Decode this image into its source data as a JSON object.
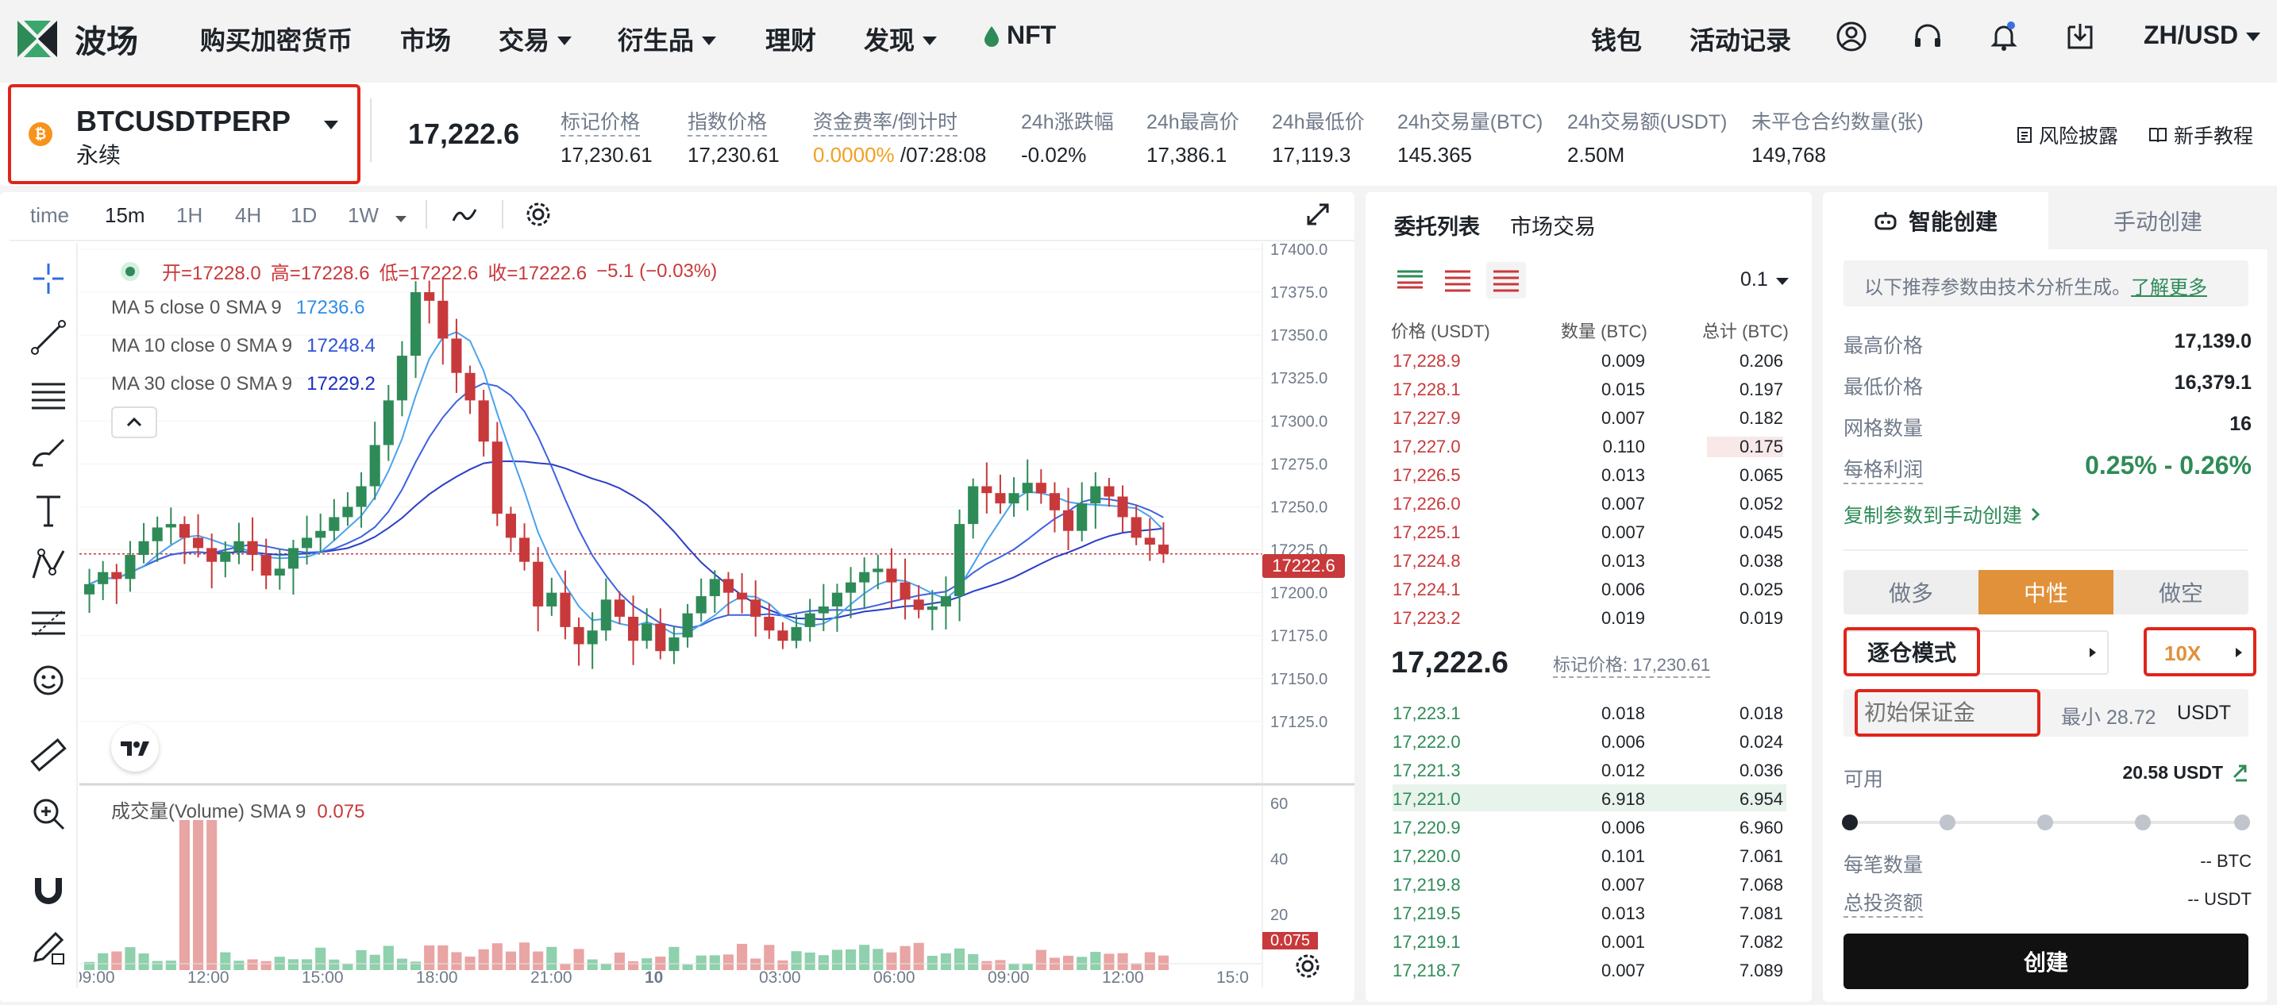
{
  "brand": {
    "name": "波场"
  },
  "nav": {
    "buy_crypto": "购买加密货币",
    "market": "市场",
    "trade": "交易",
    "derivatives": "衍生品",
    "finance": "理财",
    "discover": "发现",
    "nft": "NFT"
  },
  "nav_right": {
    "wallet": "钱包",
    "activity": "活动记录",
    "locale": "ZH/USD"
  },
  "ticker": {
    "symbol": "BTCUSDTPERP",
    "type": "永续",
    "price": "17,222.6",
    "stats": [
      {
        "label": "标记价格",
        "value": "17,230.61"
      },
      {
        "label": "指数价格",
        "value": "17,230.61"
      },
      {
        "label": "资金费率/倒计时",
        "value_highlight": "0.0000%",
        "value": " /07:28:08"
      },
      {
        "label": "24h涨跌幅",
        "value": "-0.02%"
      },
      {
        "label": "24h最高价",
        "value": "17,386.1"
      },
      {
        "label": "24h最低价",
        "value": "17,119.3"
      },
      {
        "label": "24h交易量(BTC)",
        "value": "145.365"
      },
      {
        "label": "24h交易额(USDT)",
        "value": "2.50M"
      },
      {
        "label": "未平仓合约数量(张)",
        "value": "149,768"
      }
    ],
    "risk": "风险披露",
    "tutorial": "新手教程"
  },
  "chart_toolbar": {
    "intervals": [
      "time",
      "15m",
      "1H",
      "4H",
      "1D",
      "1W"
    ],
    "active": "15m"
  },
  "chart_legend": {
    "ohlc_open": "开=17228.0",
    "ohlc_high": "高=17228.6",
    "ohlc_low": "低=17222.6",
    "ohlc_close": "收=17222.6",
    "ohlc_change": "−5.1 (−0.03%)",
    "ma5_label": "MA 5 close 0 SMA 9",
    "ma5_val": "17236.6",
    "ma10_label": "MA 10 close 0 SMA 9",
    "ma10_val": "17248.4",
    "ma30_label": "MA 30 close 0 SMA 9",
    "ma30_val": "17229.2",
    "volume_label": "成交量(Volume) SMA 9",
    "volume_val": "0.075",
    "last_price_tag": "17222.6",
    "volume_tag": "0.075"
  },
  "chart_data": {
    "type": "candlestick",
    "price_axis": {
      "min": 17100,
      "max": 17400,
      "ticks": [
        "17400.0",
        "17375.0",
        "17350.0",
        "17325.0",
        "17300.0",
        "17275.0",
        "17250.0",
        "17225.0",
        "17200.0",
        "17175.0",
        "17150.0",
        "17125.0"
      ]
    },
    "volume_axis": {
      "min": 0,
      "max": 60,
      "ticks": [
        "60",
        "40",
        "20"
      ]
    },
    "time_ticks": [
      "09:00",
      "12:00",
      "15:00",
      "18:00",
      "21:00",
      "10",
      "03:00",
      "06:00",
      "09:00",
      "12:00",
      "15:0"
    ],
    "close_series": [
      17205,
      17212,
      17208,
      17222,
      17230,
      17238,
      17240,
      17232,
      17226,
      17218,
      17224,
      17230,
      17222,
      17210,
      17214,
      17226,
      17232,
      17236,
      17244,
      17250,
      17262,
      17286,
      17312,
      17338,
      17375,
      17370,
      17348,
      17328,
      17312,
      17288,
      17246,
      17232,
      17218,
      17192,
      17200,
      17180,
      17170,
      17178,
      17196,
      17186,
      17172,
      17182,
      17166,
      17174,
      17188,
      17198,
      17208,
      17200,
      17196,
      17186,
      17178,
      17172,
      17180,
      17188,
      17192,
      17200,
      17206,
      17212,
      17214,
      17206,
      17196,
      17190,
      17192,
      17198,
      17240,
      17262,
      17258,
      17252,
      17258,
      17264,
      17258,
      17248,
      17236,
      17252,
      17262,
      17256,
      17244,
      17232,
      17228,
      17222.6
    ],
    "ma5_last": 17236.6,
    "ma10_last": 17248.4,
    "ma30_last": 17229.2
  },
  "orderbook": {
    "tabs": [
      "委托列表",
      "市场交易"
    ],
    "precision": "0.1",
    "headers": [
      "价格 (USDT)",
      "数量 (BTC)",
      "总计 (BTC)"
    ],
    "asks": [
      [
        "17,228.9",
        "0.009",
        "0.206"
      ],
      [
        "17,228.1",
        "0.015",
        "0.197"
      ],
      [
        "17,227.9",
        "0.007",
        "0.182"
      ],
      [
        "17,227.0",
        "0.110",
        "0.175"
      ],
      [
        "17,226.5",
        "0.013",
        "0.065"
      ],
      [
        "17,226.0",
        "0.007",
        "0.052"
      ],
      [
        "17,225.1",
        "0.007",
        "0.045"
      ],
      [
        "17,224.8",
        "0.013",
        "0.038"
      ],
      [
        "17,224.1",
        "0.006",
        "0.025"
      ],
      [
        "17,223.2",
        "0.019",
        "0.019"
      ]
    ],
    "last_price": "17,222.6",
    "mark_label": "标记价格: 17,230.61",
    "bids": [
      [
        "17,223.1",
        "0.018",
        "0.018"
      ],
      [
        "17,222.0",
        "0.006",
        "0.024"
      ],
      [
        "17,221.3",
        "0.012",
        "0.036"
      ],
      [
        "17,221.0",
        "6.918",
        "6.954"
      ],
      [
        "17,220.9",
        "0.006",
        "6.960"
      ],
      [
        "17,220.0",
        "0.101",
        "7.061"
      ],
      [
        "17,219.8",
        "0.007",
        "7.068"
      ],
      [
        "17,219.5",
        "0.013",
        "7.081"
      ],
      [
        "17,219.1",
        "0.001",
        "7.082"
      ],
      [
        "17,218.7",
        "0.007",
        "7.089"
      ]
    ]
  },
  "trade": {
    "tab_smart": "智能创建",
    "tab_manual": "手动创建",
    "notice": "以下推荐参数由技术分析生成。",
    "notice_link": "了解更多",
    "high_label": "最高价格",
    "high_val": "17,139.0",
    "low_label": "最低价格",
    "low_val": "16,379.1",
    "grid_label": "网格数量",
    "grid_val": "16",
    "profit_label": "每格利润",
    "profit_val": "0.25% - 0.26%",
    "copy_link": "复制参数到手动创建",
    "sides": [
      "做多",
      "中性",
      "做空"
    ],
    "margin_mode": "逐仓模式",
    "leverage": "10X",
    "init_margin_placeholder": "初始保证金",
    "min_hint": "最小 28.72",
    "unit": "USDT",
    "available_label": "可用",
    "available_val": "20.58 USDT",
    "per_grid_label": "每笔数量",
    "per_grid_val": "-- BTC",
    "total_label": "总投资额",
    "total_val": "-- USDT",
    "create": "创建"
  },
  "colors": {
    "up": "#2e8b57",
    "down": "#c8393b",
    "accent": "#e0913a",
    "highlight": "#e0251b"
  }
}
